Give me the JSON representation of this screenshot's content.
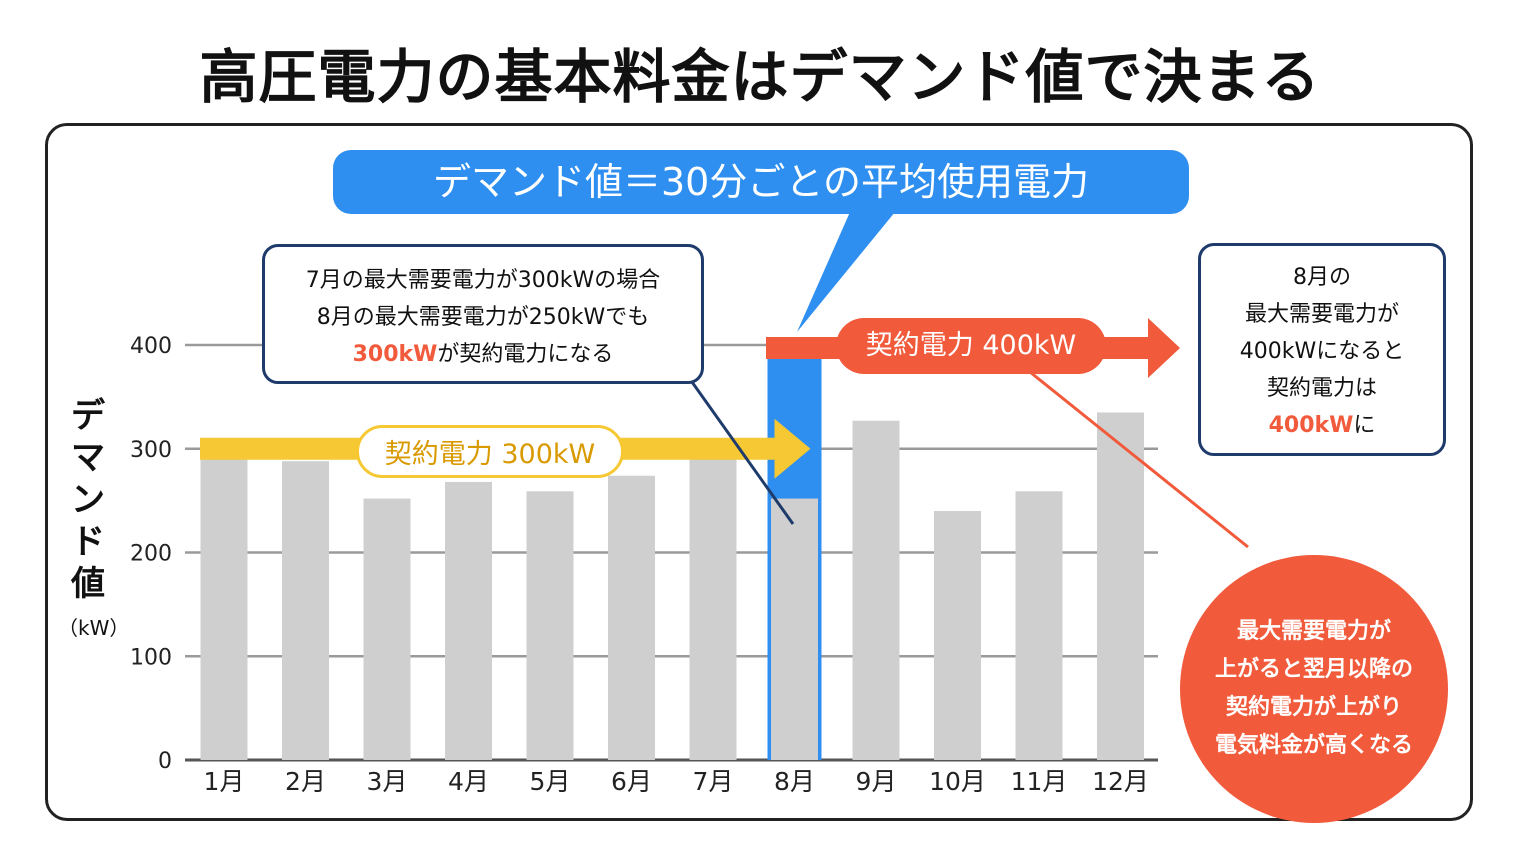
{
  "title": "高圧電力の基本料金はデマンド値で決まる",
  "banner": "デマンド値＝30分ごとの平均使用電力",
  "callout_left": {
    "line1": "7月の最大需要電力が300kWの場合",
    "line2": "8月の最大需要電力が250kWでも",
    "line3_red": "300kW",
    "line3_rest": "が契約電力になる"
  },
  "callout_right": {
    "line1": "8月の",
    "line2": "最大需要電力が",
    "line3": "400kWになると",
    "line4": "契約電力は",
    "line5_red": "400kW",
    "line5_rest": "に"
  },
  "circle": {
    "line1": "最大需要電力が",
    "line2": "上がると翌月以降の",
    "line3": "契約電力が上がり",
    "line4": "電気料金が高くなる"
  },
  "contract_300_label": "契約電力 300kW",
  "contract_400_label": "契約電力 400kW",
  "colors": {
    "bar": "#cfcfcf",
    "highlight": "#2e8ff0",
    "yellow": "#f6c833",
    "red": "#f15a3b",
    "navy": "#1e3b6b"
  },
  "chart_data": {
    "type": "bar",
    "categories": [
      "1月",
      "2月",
      "3月",
      "4月",
      "5月",
      "6月",
      "7月",
      "8月",
      "9月",
      "10月",
      "11月",
      "12月"
    ],
    "values": [
      290,
      288,
      252,
      268,
      259,
      274,
      300,
      252,
      327,
      240,
      259,
      335
    ],
    "ylabel": "デマンド値",
    "yunit": "（kW）",
    "ylim": [
      0,
      400
    ],
    "yticks": [
      0,
      100,
      200,
      300,
      400
    ],
    "highlight_category": "8月",
    "contract_lines": [
      {
        "label": "契約電力 300kW",
        "value": 300,
        "months": [
          "1月",
          "7月"
        ]
      },
      {
        "label": "契約電力 400kW",
        "value": 400,
        "months": [
          "8月",
          "12月"
        ]
      }
    ]
  }
}
